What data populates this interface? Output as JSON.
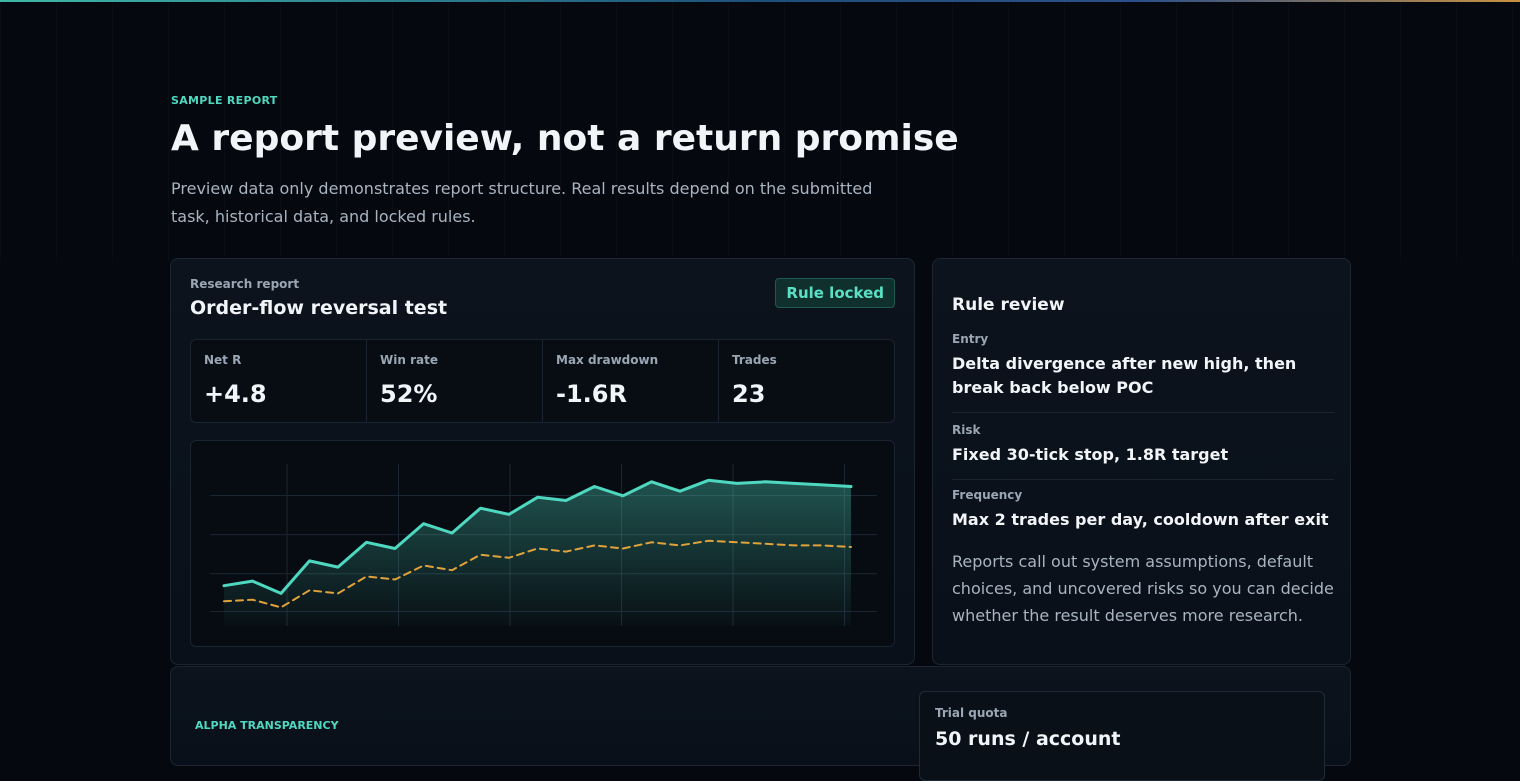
{
  "section": {
    "eyebrow": "SAMPLE REPORT",
    "headline": "A report preview, not a return promise",
    "lede": "Preview data only demonstrates report structure. Real results depend on the submitted task, historical data, and locked rules."
  },
  "report": {
    "kicker": "Research report",
    "title": "Order-flow reversal test",
    "badge": "Rule locked",
    "metrics": [
      {
        "label": "Net R",
        "value": "+4.8"
      },
      {
        "label": "Win rate",
        "value": "52%"
      },
      {
        "label": "Max drawdown",
        "value": "-1.6R"
      },
      {
        "label": "Trades",
        "value": "23"
      }
    ]
  },
  "chart_data": {
    "type": "line",
    "title": "",
    "xlabel": "",
    "ylabel": "",
    "grid": true,
    "ylim": [
      0,
      100
    ],
    "x": [
      1,
      2,
      3,
      4,
      5,
      6,
      7,
      8,
      9,
      10,
      11,
      12,
      13,
      14,
      15,
      16,
      17,
      18,
      19,
      20,
      21,
      22,
      23
    ],
    "series": [
      {
        "color": "#4fd8c0",
        "style": "solid",
        "fill": true,
        "values": [
          26,
          29,
          21,
          42,
          38,
          54,
          50,
          66,
          60,
          76,
          72,
          83,
          81,
          90,
          84,
          93,
          87,
          94,
          92,
          93,
          92,
          91,
          90
        ]
      },
      {
        "color": "#e0a23a",
        "style": "dashed",
        "fill": false,
        "values": [
          16,
          17,
          12,
          23,
          21,
          32,
          30,
          39,
          36,
          46,
          44,
          50,
          48,
          52,
          50,
          54,
          52,
          55,
          54,
          53,
          52,
          52,
          51
        ]
      }
    ],
    "colors": {
      "primary": "#4fd8c0",
      "secondary": "#e0a23a"
    }
  },
  "rules": {
    "title": "Rule review",
    "items": [
      {
        "label": "Entry",
        "text": "Delta divergence after new high, then break back below POC"
      },
      {
        "label": "Risk",
        "text": "Fixed 30-tick stop, 1.8R target"
      },
      {
        "label": "Frequency",
        "text": "Max 2 trades per day, cooldown after exit"
      }
    ],
    "note": "Reports call out system assumptions, default choices, and uncovered risks so you can decide whether the result deserves more research."
  },
  "alpha": {
    "eyebrow": "ALPHA TRANSPARENCY",
    "quota_label": "Trial quota",
    "quota_value": "50 runs / account"
  }
}
